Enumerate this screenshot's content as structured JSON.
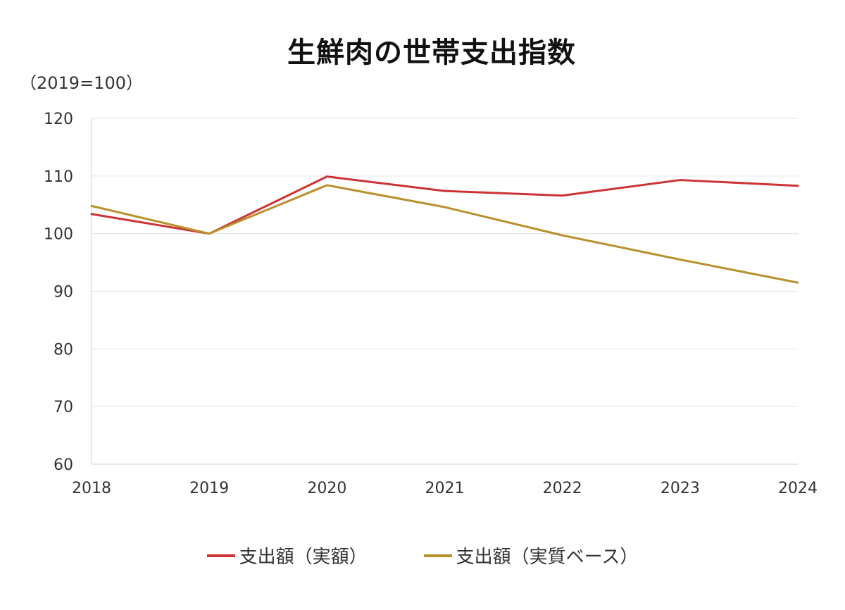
{
  "chart_data": {
    "type": "line",
    "title": "生鮮肉の世帯支出指数",
    "ylabel": "（2019=100）",
    "xlabel": "",
    "categories": [
      "2018",
      "2019",
      "2020",
      "2021",
      "2022",
      "2023",
      "2024"
    ],
    "ylim": [
      60,
      120
    ],
    "yticks": [
      60,
      70,
      80,
      90,
      100,
      110,
      120
    ],
    "grid": true,
    "legend_position": "bottom",
    "series": [
      {
        "name": "支出額（実額）",
        "color": "#cc3333",
        "values": [
          103.4,
          100.0,
          109.9,
          107.4,
          106.6,
          109.3,
          108.3
        ]
      },
      {
        "name": "支出額（実質ベース）",
        "color": "#b8902e",
        "values": [
          104.8,
          100.0,
          108.4,
          104.6,
          99.7,
          95.5,
          91.5
        ]
      }
    ]
  }
}
